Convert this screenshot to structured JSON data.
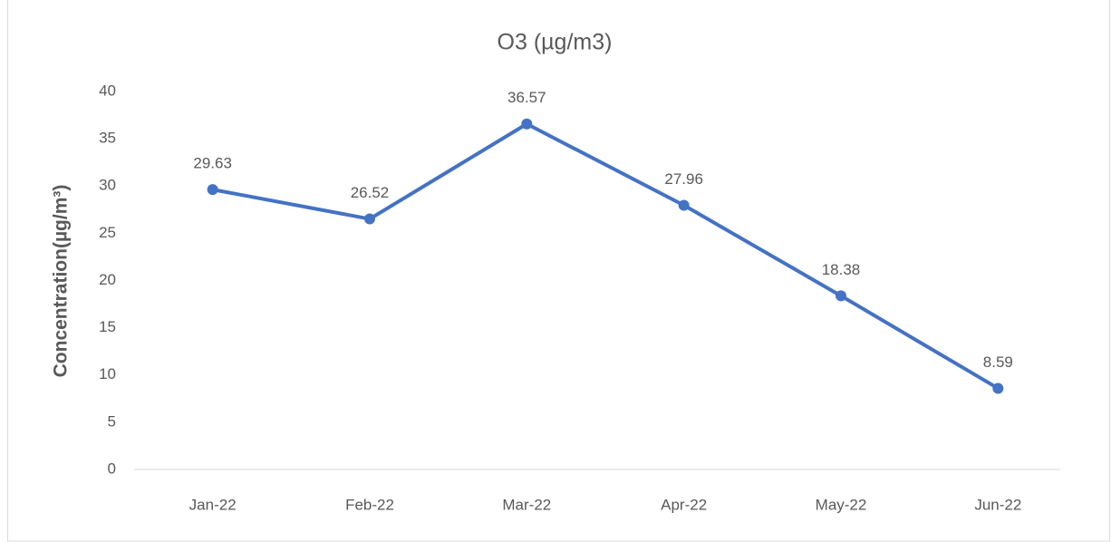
{
  "chart_data": {
    "type": "line",
    "title": "O3 (µg/m3)",
    "y_label": "Concentration(µg/m³)",
    "categories": [
      "Jan-22",
      "Feb-22",
      "Mar-22",
      "Apr-22",
      "May-22",
      "Jun-22"
    ],
    "series": [
      {
        "name": "O3",
        "color": "#4472c4",
        "values": [
          29.63,
          26.52,
          36.57,
          27.96,
          18.38,
          8.59
        ]
      }
    ],
    "ylim": [
      0,
      40
    ],
    "yticks": [
      0,
      5,
      10,
      15,
      20,
      25,
      30,
      35,
      40
    ],
    "grid": false,
    "legend": false
  }
}
